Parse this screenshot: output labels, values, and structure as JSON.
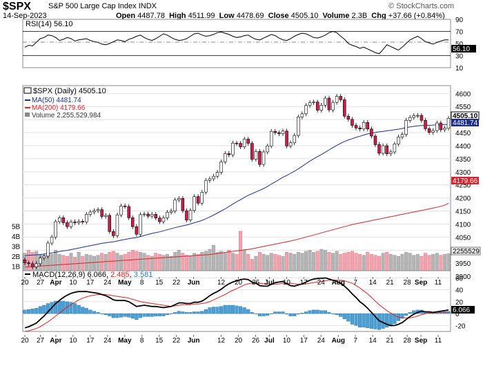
{
  "header": {
    "symbol": "$SPX",
    "name": "S&P 500 Large Cap Index",
    "exchange": "INDX",
    "watermark": "© StockCharts.com",
    "date": "14-Sep-2023",
    "open_label": "Open",
    "open": "4487.78",
    "high_label": "High",
    "high": "4511.99",
    "low_label": "Low",
    "low": "4478.69",
    "close_label": "Close",
    "close": "4505.10",
    "volume_label": "Volume",
    "volume": "2.3B",
    "chg_label": "Chg",
    "chg": "+37.66 (+0.84%)"
  },
  "rsi_panel": {
    "label": "RSI(14) 56.10",
    "current_tag": "56.10",
    "ticks": [
      "90",
      "70",
      "50",
      "30",
      "10"
    ]
  },
  "price_panel": {
    "legend": {
      "title": "$SPX (Daily) 4505.10",
      "ma50": "MA(50) 4481.74",
      "ma200": "MA(200) 4179.66",
      "volume": "Volume 2,255,529,984"
    },
    "tags": {
      "close": "4505.10",
      "ma50": "4481.74",
      "ma200": "4179.66",
      "volume": "2255529"
    },
    "price_ticks": [
      "4600",
      "4550",
      "4500",
      "4450",
      "4400",
      "4350",
      "4300",
      "4250",
      "4200",
      "4150",
      "4100",
      "4050",
      "4000",
      "3950",
      "3900"
    ],
    "volume_ticks": [
      "5B",
      "4B",
      "3B",
      "2B",
      "1B"
    ]
  },
  "macd_panel": {
    "label_prefix": "MACD(12,26,9)",
    "macd": "6.066",
    "signal": "2.485",
    "hist": "3.581",
    "current_tag": "6.066",
    "ticks": [
      "60",
      "40",
      "20",
      "0",
      "-20"
    ]
  },
  "xaxis": {
    "labels": [
      "20",
      "27",
      "Apr",
      "10",
      "17",
      "24",
      "May",
      "8",
      "15",
      "22",
      "Jun",
      "12",
      "20",
      "26",
      "Jul",
      "10",
      "17",
      "24",
      "Aug",
      "7",
      "14",
      "21",
      "28",
      "Sep",
      "11"
    ]
  },
  "colors": {
    "up": "#ffffff",
    "down": "#d01c4a",
    "ma50": "#1d2f8c",
    "ma200": "#d4242f",
    "vol_up": "#b4b4b4",
    "vol_down": "#f0a3ad",
    "rsi": "#000000",
    "macd_line": "#000000",
    "signal_line": "#e02020",
    "hist": "#4a9fd4",
    "grid": "#e2e2e2"
  },
  "chart_data": [
    {
      "type": "line",
      "name": "RSI(14)",
      "x_range": [
        "2023-03-20",
        "2023-09-14"
      ],
      "ylim": [
        10,
        90
      ],
      "series": [
        {
          "name": "RSI(14)",
          "values": [
            44,
            47,
            46,
            52,
            58,
            60,
            64,
            63,
            60,
            55,
            57,
            60,
            58,
            54,
            56,
            57,
            58,
            55,
            53,
            52,
            49,
            48,
            50,
            53,
            56,
            55,
            53,
            57,
            59,
            62,
            64,
            60,
            57,
            55,
            58,
            62,
            66,
            64,
            60,
            57,
            55,
            56,
            58,
            62,
            66,
            67,
            64,
            62,
            63,
            65,
            68,
            69,
            67,
            65,
            62,
            60,
            61,
            63,
            64,
            60,
            57,
            56,
            59,
            62,
            65,
            63,
            59,
            56,
            55,
            58,
            62,
            65,
            67,
            66,
            63,
            60,
            59,
            61,
            64,
            68,
            70,
            68,
            62,
            57,
            50,
            47,
            45,
            42,
            44,
            41,
            38,
            35,
            33,
            40,
            48,
            45,
            42,
            39,
            44,
            50,
            56,
            59,
            62,
            58,
            53,
            51,
            49,
            52,
            54,
            56,
            56.1
          ]
        }
      ]
    },
    {
      "type": "candlestick",
      "name": "$SPX (Daily)",
      "x_range": [
        "2023-03-20",
        "2023-09-14"
      ],
      "ylim": [
        3900,
        4630
      ],
      "close": [
        3951,
        3948,
        3936,
        3948,
        3970,
        3977,
        4027,
        4050,
        4109,
        4124,
        4105,
        4090,
        4108,
        4105,
        4110,
        4108,
        4137,
        4146,
        4151,
        4155,
        4129,
        4133,
        4071,
        4055,
        4135,
        4169,
        4167,
        4124,
        4090,
        4061,
        4136,
        4138,
        4130,
        4137,
        4123,
        4109,
        4124,
        4145,
        4150,
        4192,
        4198,
        4151,
        4115,
        4152,
        4205,
        4180,
        4222,
        4267,
        4273,
        4283,
        4298,
        4338,
        4370,
        4365,
        4410,
        4409,
        4396,
        4425,
        4409,
        4348,
        4378,
        4328,
        4376,
        4399,
        4455,
        4450,
        4446,
        4456,
        4399,
        4411,
        4439,
        4510,
        4522,
        4554,
        4565,
        4567,
        4536,
        4555,
        4582,
        4537,
        4566,
        4589,
        4576,
        4513,
        4501,
        4478,
        4468,
        4464,
        4489,
        4464,
        4437,
        4404,
        4371,
        4400,
        4369,
        4376,
        4406,
        4433,
        4443,
        4497,
        4508,
        4515,
        4516,
        4497,
        4465,
        4451,
        4458,
        4487,
        4461,
        4467,
        4505
      ],
      "ma50": [
        3979,
        3980,
        3981,
        3982,
        3983,
        3985,
        3987,
        3989,
        3992,
        3995,
        3997,
        3999,
        4002,
        4005,
        4008,
        4011,
        4014,
        4017,
        4020,
        4023,
        4026,
        4028,
        4030,
        4032,
        4035,
        4038,
        4041,
        4044,
        4046,
        4048,
        4052,
        4056,
        4060,
        4064,
        4067,
        4070,
        4074,
        4078,
        4082,
        4086,
        4090,
        4093,
        4096,
        4100,
        4105,
        4109,
        4114,
        4120,
        4127,
        4134,
        4142,
        4150,
        4158,
        4167,
        4176,
        4185,
        4193,
        4202,
        4210,
        4216,
        4223,
        4229,
        4236,
        4244,
        4253,
        4261,
        4270,
        4279,
        4286,
        4294,
        4302,
        4311,
        4321,
        4331,
        4341,
        4350,
        4358,
        4366,
        4375,
        4384,
        4393,
        4401,
        4409,
        4416,
        4422,
        4427,
        4432,
        4436,
        4441,
        4445,
        4448,
        4451,
        4453,
        4455,
        4457,
        4459,
        4461,
        4463,
        4466,
        4469,
        4472,
        4474,
        4476,
        4477,
        4478,
        4478,
        4479,
        4480,
        4480,
        4481,
        4481.74
      ],
      "ma200": [
        3935,
        3936,
        3937,
        3938,
        3939,
        3940,
        3941,
        3942,
        3943,
        3944,
        3945,
        3946,
        3947,
        3948,
        3949,
        3950,
        3951,
        3952,
        3953,
        3954,
        3955,
        3956,
        3957,
        3958,
        3959,
        3960,
        3961,
        3962,
        3963,
        3964,
        3965,
        3966,
        3967,
        3968,
        3969,
        3970,
        3971,
        3972,
        3973,
        3974,
        3975,
        3976,
        3977,
        3978,
        3979,
        3980,
        3981,
        3982,
        3983,
        3985,
        3987,
        3989,
        3991,
        3993,
        3995,
        3997,
        3999,
        4001,
        4003,
        4005,
        4008,
        4011,
        4014,
        4017,
        4020,
        4023,
        4026,
        4029,
        4032,
        4035,
        4038,
        4042,
        4046,
        4050,
        4054,
        4058,
        4062,
        4066,
        4070,
        4074,
        4078,
        4082,
        4086,
        4090,
        4094,
        4098,
        4101,
        4104,
        4107,
        4110,
        4113,
        4116,
        4119,
        4122,
        4125,
        4128,
        4131,
        4134,
        4137,
        4140,
        4143,
        4146,
        4149,
        4152,
        4155,
        4158,
        4161,
        4164,
        4168,
        4172,
        4179.66
      ],
      "volume_billions": [
        2.3,
        2.6,
        2.4,
        2.5,
        2.2,
        2.1,
        2.3,
        2.2,
        2.6,
        2.2,
        2.1,
        2.0,
        2.3,
        1.9,
        2.4,
        2.0,
        2.2,
        2.1,
        2.0,
        2.1,
        2.3,
        2.2,
        2.4,
        2.5,
        2.3,
        2.1,
        2.2,
        2.4,
        2.6,
        2.5,
        2.4,
        2.3,
        2.1,
        2.0,
        2.3,
        2.2,
        2.1,
        2.2,
        2.0,
        2.4,
        2.6,
        2.3,
        2.1,
        2.0,
        2.3,
        2.2,
        2.4,
        2.5,
        2.7,
        3.1,
        2.4,
        2.5,
        2.3,
        2.6,
        2.3,
        2.2,
        4.5,
        2.6,
        2.2,
        1.7,
        2.0,
        2.4,
        2.2,
        2.1,
        2.3,
        2.2,
        2.1,
        2.0,
        2.4,
        2.3,
        2.2,
        2.4,
        2.3,
        2.5,
        2.6,
        2.4,
        2.5,
        2.7,
        2.6,
        2.4,
        2.3,
        2.5,
        2.2,
        2.3,
        2.4,
        2.5,
        2.3,
        2.2,
        2.1,
        2.4,
        2.2,
        2.1,
        2.0,
        2.3,
        2.4,
        2.2,
        2.1,
        2.0,
        2.2,
        2.4,
        2.3,
        2.1,
        2.2,
        2.0,
        2.3,
        2.1,
        2.2,
        2.3,
        2.1,
        2.2,
        2.26
      ]
    },
    {
      "type": "line",
      "name": "MACD(12,26,9)",
      "x_range": [
        "2023-03-20",
        "2023-09-14"
      ],
      "ylim": [
        -30,
        72
      ],
      "series": [
        {
          "name": "MACD",
          "values": [
            -24,
            -22,
            -19,
            -16,
            -10,
            -4,
            3,
            10,
            17,
            22,
            27,
            31,
            34,
            36,
            37,
            37,
            37,
            36,
            35,
            34,
            32,
            30,
            27,
            23,
            22,
            22,
            22,
            20,
            16,
            12,
            13,
            14,
            13,
            12,
            12,
            11,
            10,
            11,
            12,
            15,
            18,
            18,
            17,
            17,
            19,
            19,
            21,
            25,
            30,
            34,
            37,
            41,
            46,
            50,
            53,
            55,
            57,
            58,
            57,
            53,
            51,
            47,
            46,
            46,
            49,
            52,
            53,
            54,
            50,
            47,
            46,
            48,
            50,
            53,
            56,
            58,
            59,
            59,
            60,
            58,
            56,
            54,
            51,
            46,
            40,
            33,
            27,
            20,
            15,
            9,
            2,
            -5,
            -12,
            -15,
            -18,
            -20,
            -20,
            -18,
            -15,
            -10,
            -5,
            -1,
            2,
            4,
            3,
            3,
            2,
            3,
            4,
            5,
            6.07
          ]
        },
        {
          "name": "Signal",
          "values": [
            -30,
            -29,
            -27,
            -25,
            -22,
            -18,
            -14,
            -9,
            -4,
            1,
            6,
            11,
            15,
            19,
            23,
            26,
            28,
            30,
            31,
            32,
            32,
            32,
            31,
            30,
            29,
            28,
            27,
            26,
            24,
            22,
            20,
            19,
            18,
            17,
            16,
            15,
            14,
            13,
            12,
            13,
            14,
            15,
            15,
            15,
            16,
            16,
            17,
            18,
            20,
            23,
            26,
            29,
            32,
            36,
            39,
            42,
            45,
            48,
            50,
            51,
            51,
            51,
            50,
            49,
            49,
            49,
            50,
            51,
            51,
            51,
            50,
            49,
            49,
            50,
            51,
            52,
            53,
            54,
            55,
            56,
            56,
            56,
            56,
            55,
            53,
            51,
            47,
            43,
            38,
            33,
            27,
            21,
            15,
            10,
            5,
            1,
            -3,
            -6,
            -7,
            -7,
            -7,
            -6,
            -4,
            -2,
            0,
            1,
            1,
            2,
            2,
            2,
            2.49
          ]
        }
      ]
    }
  ]
}
